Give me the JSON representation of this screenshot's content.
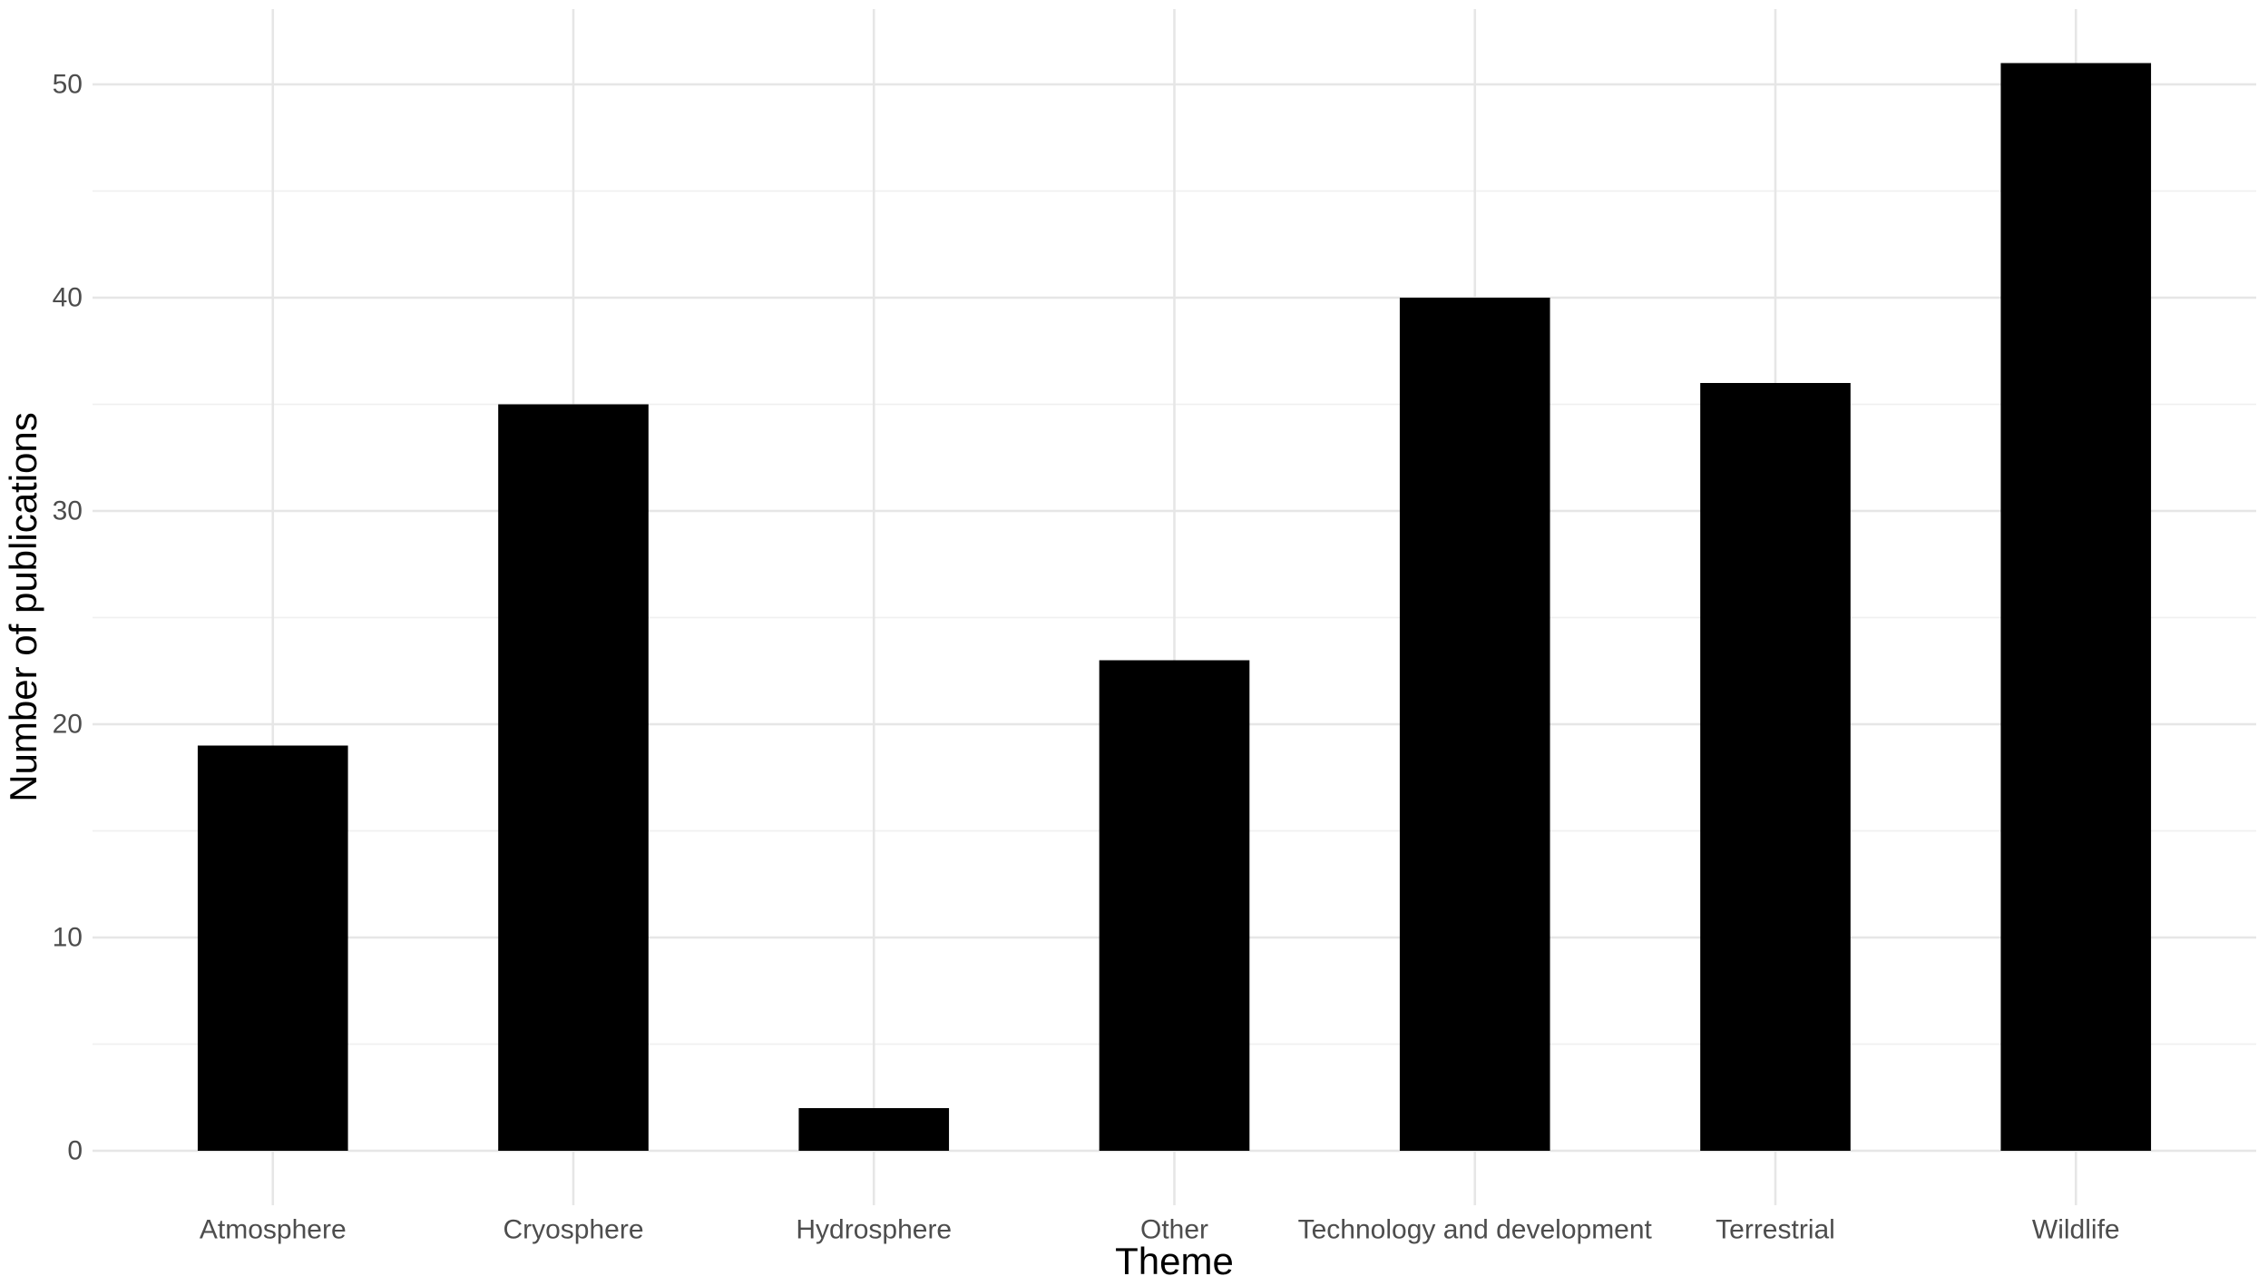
{
  "chart_data": {
    "type": "bar",
    "title": "",
    "xlabel": "Theme",
    "ylabel": "Number of publications",
    "categories": [
      "Atmosphere",
      "Cryosphere",
      "Hydrosphere",
      "Other",
      "Technology and development",
      "Terrestrial",
      "Wildlife"
    ],
    "values": [
      19,
      35,
      2,
      23,
      40,
      36,
      51
    ],
    "y_major_ticks": [
      0,
      10,
      20,
      30,
      40,
      50
    ],
    "y_minor_ticks": [
      5,
      15,
      25,
      35,
      45
    ],
    "ylim": [
      0,
      51
    ],
    "grid": "on",
    "legend": "none",
    "colors": {
      "background": "#ffffff",
      "bar": "#000000",
      "grid_major": "#e6e6e6",
      "grid_minor": "#f0f0f0",
      "tick_label": "#4d4d4d",
      "axis_title": "#000000"
    }
  }
}
